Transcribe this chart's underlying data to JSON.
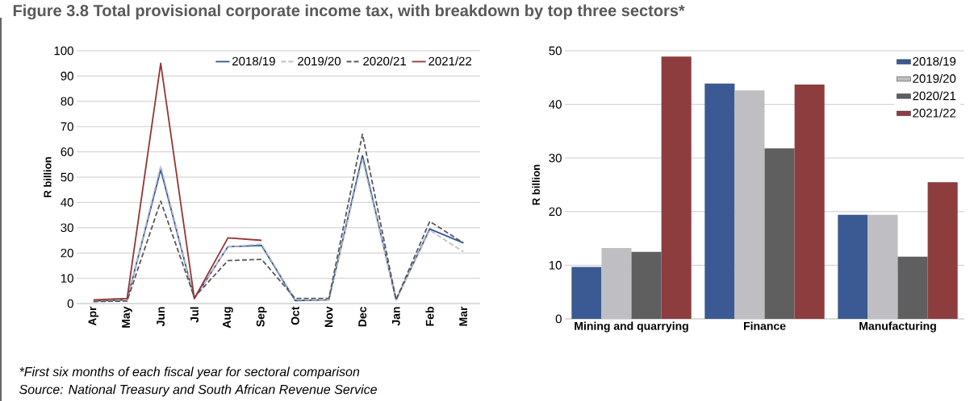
{
  "chart_data": [
    {
      "type": "line",
      "title": "Figure 3.8 Total provisional corporate income tax, with breakdown by top three sectors*",
      "ylabel": "R billion",
      "categories": [
        "Apr",
        "May",
        "Jun",
        "Jul",
        "Aug",
        "Sep",
        "Oct",
        "Nov",
        "Dec",
        "Jan",
        "Feb",
        "Mar"
      ],
      "series": [
        {
          "name": "2018/19",
          "color": "#2f5597",
          "line_style": "solid",
          "values": [
            1,
            1.5,
            53,
            2,
            22.5,
            23,
            1.2,
            1.5,
            58.5,
            1.5,
            29.5,
            24
          ]
        },
        {
          "name": "2019/20",
          "color": "#c0c0c0",
          "line_style": "dashed",
          "values": [
            1,
            1.5,
            54.5,
            2,
            22.5,
            23.5,
            1.5,
            1.5,
            57,
            1.5,
            29,
            20.5
          ]
        },
        {
          "name": "2020/21",
          "color": "#595959",
          "line_style": "dashed",
          "values": [
            0.8,
            1,
            40.5,
            2.5,
            17,
            17.5,
            2,
            2,
            67,
            1.5,
            32.5,
            24
          ]
        },
        {
          "name": "2021/22",
          "color": "#943634",
          "line_style": "solid",
          "values": [
            1.5,
            2,
            95,
            2,
            26,
            25,
            null,
            null,
            null,
            null,
            null,
            null
          ]
        }
      ],
      "ylim": [
        0,
        100
      ],
      "yticks": [
        0,
        10,
        20,
        30,
        40,
        50,
        60,
        70,
        80,
        90,
        100
      ],
      "grid": "y",
      "legend": "top right",
      "annotations": [
        "*First six months of each fiscal year for sectoral comparison",
        "Source: National Treasury and South African Revenue Service"
      ]
    },
    {
      "type": "bar",
      "ylabel": "R billion",
      "categories": [
        "Mining and quarrying",
        "Finance",
        "Manufacturing"
      ],
      "series": [
        {
          "name": "2018/19",
          "color": "#3b5a93",
          "values": [
            9.7,
            43.9,
            19.4
          ]
        },
        {
          "name": "2019/20",
          "color": "#bfbfc3",
          "values": [
            13.2,
            42.6,
            19.4
          ]
        },
        {
          "name": "2020/21",
          "color": "#5f5f5f",
          "values": [
            12.5,
            31.8,
            11.6
          ]
        },
        {
          "name": "2021/22",
          "color": "#8e3d3f",
          "values": [
            48.9,
            43.7,
            25.5
          ]
        }
      ],
      "ylim": [
        0,
        50
      ],
      "yticks": [
        0,
        10,
        20,
        30,
        40,
        50
      ],
      "grid": "y",
      "legend": "top right"
    }
  ]
}
